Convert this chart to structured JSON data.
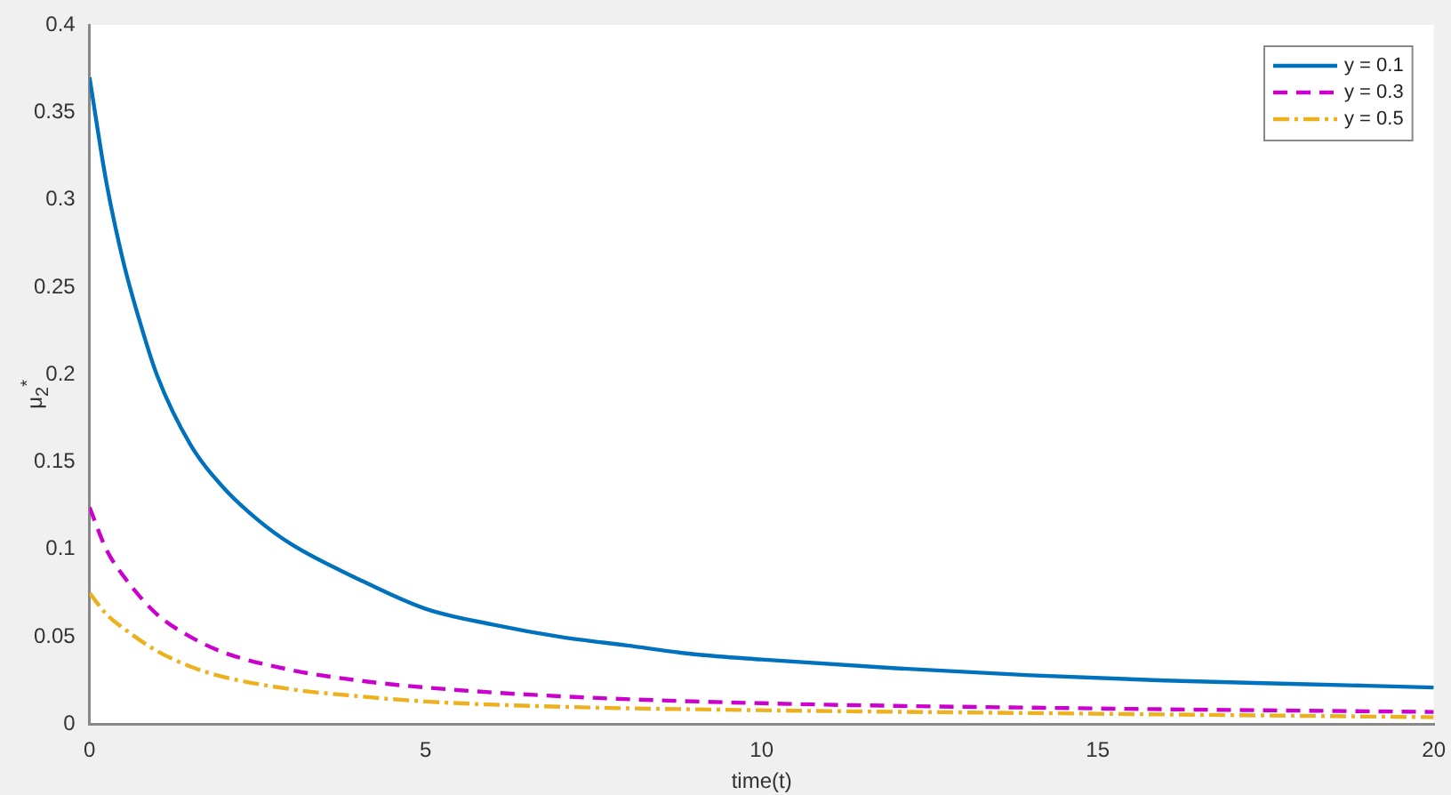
{
  "chart_data": {
    "type": "line",
    "xlabel": "time(t)",
    "ylabel": "μ$_{2}$$^{*}$",
    "xlim": [
      0,
      20
    ],
    "xticks": [
      0,
      5,
      10,
      15,
      20
    ],
    "ylim": [
      0,
      0.4
    ],
    "yticks": [
      0,
      0.05,
      0.1,
      0.15,
      0.2,
      0.25,
      0.3,
      0.35,
      0.4
    ],
    "grid": false,
    "legend": "top right",
    "marker": "none",
    "series": [
      {
        "name": "y = 0.1",
        "color": "#0072bd",
        "line_style": "solid",
        "x": [
          0,
          0.25,
          0.5,
          0.75,
          1,
          1.5,
          2,
          2.5,
          3,
          4,
          5,
          6,
          7,
          8,
          9,
          10,
          12,
          14,
          16,
          18,
          20
        ],
        "values": [
          0.37,
          0.31,
          0.265,
          0.23,
          0.2,
          0.16,
          0.135,
          0.117,
          0.103,
          0.083,
          0.066,
          0.057,
          0.05,
          0.045,
          0.04,
          0.037,
          0.032,
          0.028,
          0.025,
          0.023,
          0.021
        ]
      },
      {
        "name": "y = 0.3",
        "color": "#cc00cc",
        "line_style": "dashed",
        "x": [
          0,
          0.25,
          0.5,
          1,
          1.5,
          2,
          3,
          4,
          5,
          7,
          10,
          15,
          20
        ],
        "values": [
          0.124,
          0.1,
          0.085,
          0.063,
          0.05,
          0.041,
          0.031,
          0.025,
          0.021,
          0.016,
          0.012,
          0.009,
          0.007
        ]
      },
      {
        "name": "y = 0.5",
        "color": "#edb120",
        "line_style": "dashdot",
        "x": [
          0,
          0.25,
          0.5,
          1,
          1.5,
          2,
          3,
          4,
          5,
          7,
          10,
          15,
          20
        ],
        "values": [
          0.075,
          0.063,
          0.055,
          0.042,
          0.033,
          0.027,
          0.02,
          0.016,
          0.013,
          0.01,
          0.008,
          0.006,
          0.004
        ]
      }
    ]
  }
}
